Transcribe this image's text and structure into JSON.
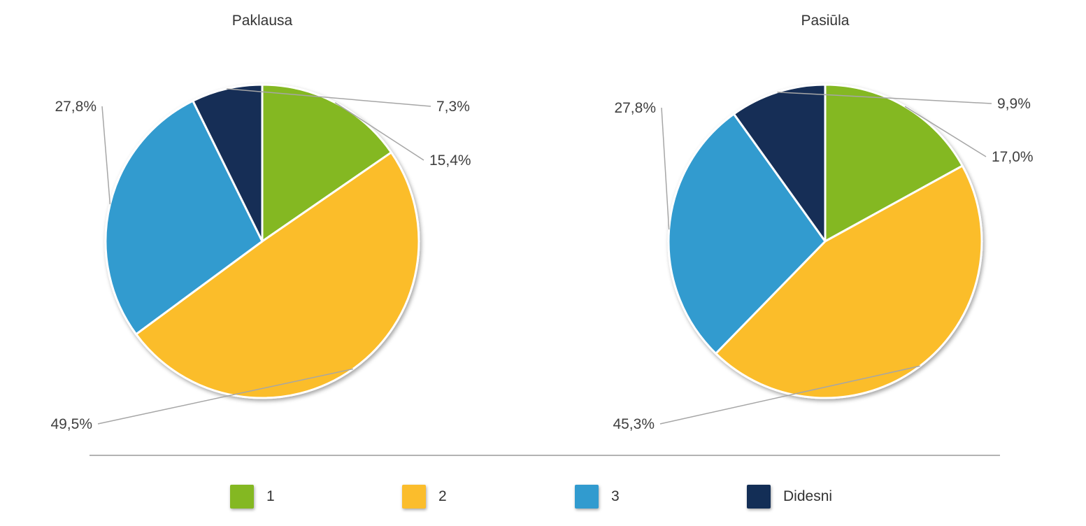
{
  "chart_data": [
    {
      "type": "pie",
      "title": "Paklausa",
      "slices": [
        {
          "category": "1",
          "value": 15.4,
          "label": "15,4%"
        },
        {
          "category": "2",
          "value": 49.5,
          "label": "49,5%"
        },
        {
          "category": "3",
          "value": 27.8,
          "label": "27,8%"
        },
        {
          "category": "Didesni",
          "value": 7.3,
          "label": "7,3%"
        }
      ]
    },
    {
      "type": "pie",
      "title": "Pasiūla",
      "slices": [
        {
          "category": "1",
          "value": 17.0,
          "label": "17,0%"
        },
        {
          "category": "2",
          "value": 45.3,
          "label": "45,3%"
        },
        {
          "category": "3",
          "value": 27.8,
          "label": "27,8%"
        },
        {
          "category": "Didesni",
          "value": 9.9,
          "label": "9,9%"
        }
      ]
    }
  ],
  "legend": {
    "placement": "bottom",
    "items": [
      {
        "label": "1",
        "color": "#84b822"
      },
      {
        "label": "2",
        "color": "#fbbd2c"
      },
      {
        "label": "3",
        "color": "#319bcf"
      },
      {
        "label": "Didesni",
        "color": "#132e56"
      }
    ]
  }
}
